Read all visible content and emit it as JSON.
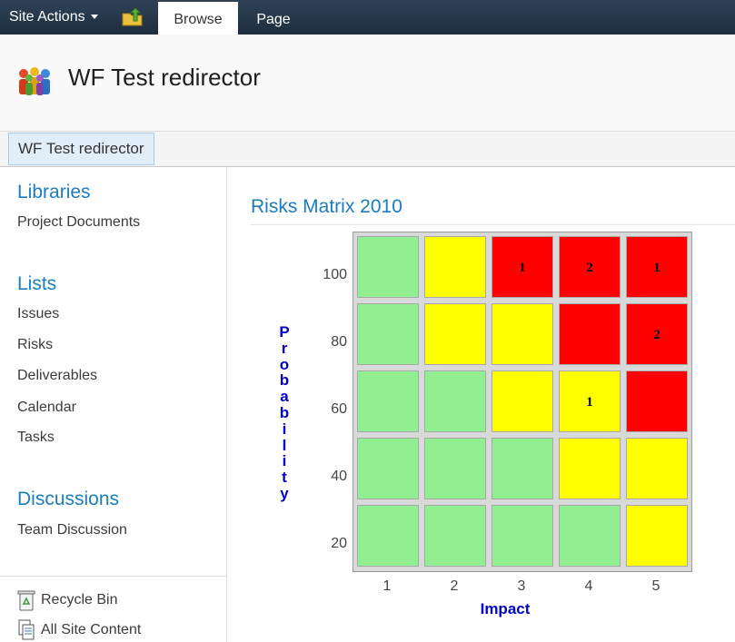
{
  "ribbon": {
    "site_actions": "Site Actions",
    "tabs": [
      {
        "label": "Browse"
      },
      {
        "label": "Page"
      }
    ]
  },
  "site": {
    "title": "WF Test redirector"
  },
  "breadcrumb": {
    "label": "WF Test redirector"
  },
  "leftnav": {
    "libraries": {
      "heading": "Libraries",
      "items": [
        "Project Documents"
      ]
    },
    "lists": {
      "heading": "Lists",
      "items": [
        "Issues",
        "Risks",
        "Deliverables",
        "Calendar",
        "Tasks"
      ]
    },
    "discussions": {
      "heading": "Discussions",
      "items": [
        "Team Discussion"
      ]
    },
    "footer": [
      "Recycle Bin",
      "All Site Content"
    ]
  },
  "webpart": {
    "title": "Risks Matrix 2010"
  },
  "colors": {
    "green": "#90ee90",
    "yellow": "#ffff00",
    "red": "#ff0000",
    "accent": "#1a7cc1"
  },
  "chart_data": {
    "type": "heatmap",
    "xlabel": "Impact",
    "ylabel": "Probability",
    "x": [
      "1",
      "2",
      "3",
      "4",
      "5"
    ],
    "y": [
      "100",
      "80",
      "60",
      "40",
      "20"
    ],
    "cells": [
      [
        {
          "color": "green",
          "count": ""
        },
        {
          "color": "yellow",
          "count": ""
        },
        {
          "color": "red",
          "count": "1"
        },
        {
          "color": "red",
          "count": "2"
        },
        {
          "color": "red",
          "count": "1"
        }
      ],
      [
        {
          "color": "green",
          "count": ""
        },
        {
          "color": "yellow",
          "count": ""
        },
        {
          "color": "yellow",
          "count": ""
        },
        {
          "color": "red",
          "count": ""
        },
        {
          "color": "red",
          "count": "2"
        }
      ],
      [
        {
          "color": "green",
          "count": ""
        },
        {
          "color": "green",
          "count": ""
        },
        {
          "color": "yellow",
          "count": ""
        },
        {
          "color": "yellow",
          "count": "1"
        },
        {
          "color": "red",
          "count": ""
        }
      ],
      [
        {
          "color": "green",
          "count": ""
        },
        {
          "color": "green",
          "count": ""
        },
        {
          "color": "green",
          "count": ""
        },
        {
          "color": "yellow",
          "count": ""
        },
        {
          "color": "yellow",
          "count": ""
        }
      ],
      [
        {
          "color": "green",
          "count": ""
        },
        {
          "color": "green",
          "count": ""
        },
        {
          "color": "green",
          "count": ""
        },
        {
          "color": "green",
          "count": ""
        },
        {
          "color": "yellow",
          "count": ""
        }
      ]
    ]
  }
}
